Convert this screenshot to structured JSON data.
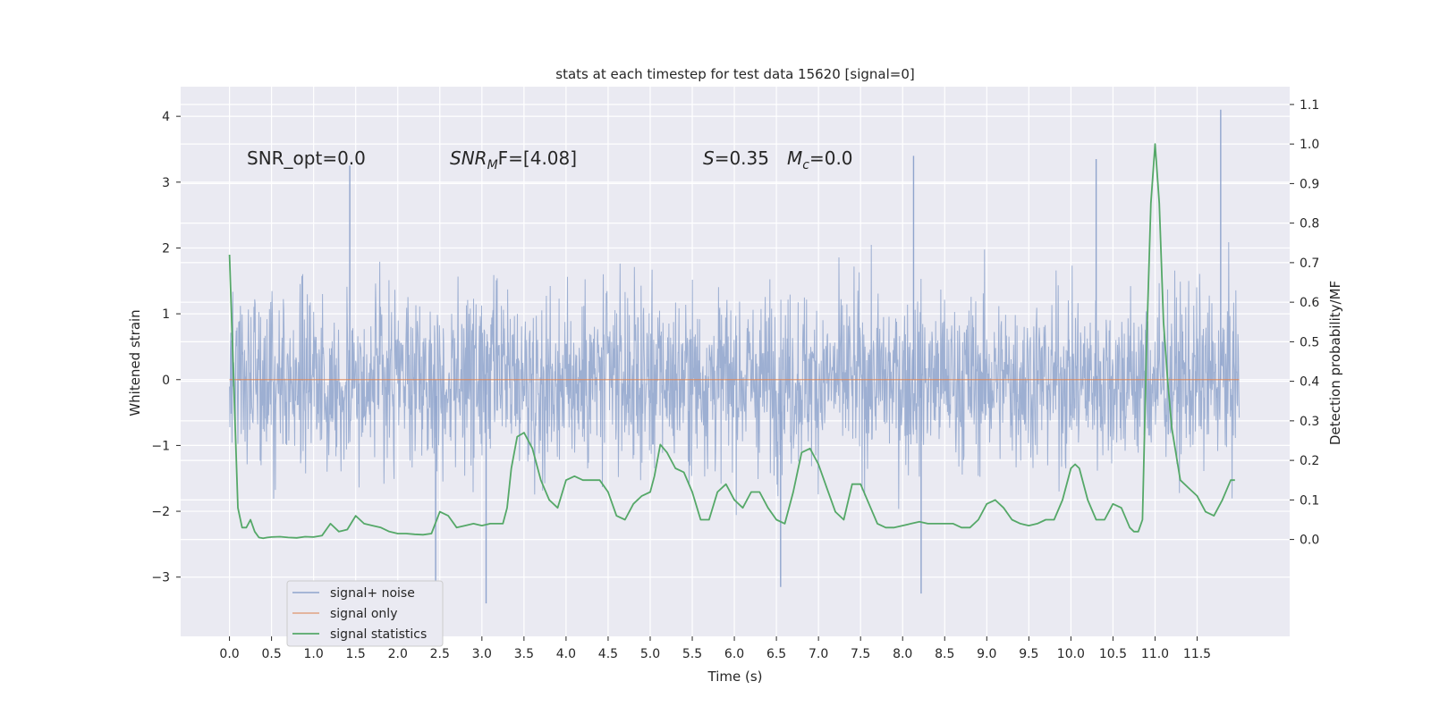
{
  "chart_data": {
    "type": "line",
    "title": "stats at each timestep for test data 15620 [signal=0]",
    "xlabel": "Time (s)",
    "ylabel": "Whitened strain",
    "y2label": "Detection probability/MF",
    "xlim": [
      -0.58,
      12.6
    ],
    "ylim": [
      -3.9,
      4.45
    ],
    "y2lim": [
      -0.245,
      1.145
    ],
    "x_ticks": [
      0.0,
      0.5,
      1.0,
      1.5,
      2.0,
      2.5,
      3.0,
      3.5,
      4.0,
      4.5,
      5.0,
      5.5,
      6.0,
      6.5,
      7.0,
      7.5,
      8.0,
      8.5,
      9.0,
      9.5,
      10.0,
      10.5,
      11.0,
      11.5
    ],
    "x_tick_labels": [
      "0.0",
      "0.5",
      "1.0",
      "1.5",
      "2.0",
      "2.5",
      "3.0",
      "3.5",
      "4.0",
      "4.5",
      "5.0",
      "5.5",
      "6.0",
      "6.5",
      "7.0",
      "7.5",
      "8.0",
      "8.5",
      "9.0",
      "9.5",
      "10.0",
      "10.5",
      "11.0",
      "11.5"
    ],
    "y_ticks": [
      -3,
      -2,
      -1,
      0,
      1,
      2,
      3,
      4
    ],
    "y_tick_labels": [
      "−3",
      "−2",
      "−1",
      "0",
      "1",
      "2",
      "3",
      "4"
    ],
    "y2_ticks": [
      0.0,
      0.1,
      0.2,
      0.3,
      0.4,
      0.5,
      0.6,
      0.7,
      0.8,
      0.9,
      1.0,
      1.1
    ],
    "y2_tick_labels": [
      "0.0",
      "0.1",
      "0.2",
      "0.3",
      "0.4",
      "0.5",
      "0.6",
      "0.7",
      "0.8",
      "0.9",
      "1.0",
      "1.1"
    ],
    "grid": true,
    "legend_position": "lower-left",
    "annotations": {
      "snr_opt": "SNR_opt=0.0",
      "snr_mf_name": "SNR",
      "snr_mf_sub": "M",
      "snr_mf_rest": "F=[4.08]",
      "s_name": "S",
      "s_value": "=0.35",
      "mc_name": "M",
      "mc_sub": "c",
      "mc_value": "=0.0"
    },
    "series": [
      {
        "name": "signal+ noise",
        "color": "#8fa4cd",
        "description_values": "whitened noise, 0.0 to 12.0 s, range about -3.4 to 4.1",
        "x_range": [
          0.0,
          12.0
        ],
        "notable_peaks": [
          {
            "x": 1.43,
            "y": 3.25
          },
          {
            "x": 8.13,
            "y": 3.4
          },
          {
            "x": 10.3,
            "y": 3.35
          },
          {
            "x": 11.78,
            "y": 4.1
          },
          {
            "x": 3.05,
            "y": -3.4
          },
          {
            "x": 2.45,
            "y": -3.55
          },
          {
            "x": 6.55,
            "y": -3.15
          },
          {
            "x": 8.22,
            "y": -3.25
          }
        ]
      },
      {
        "name": "signal only",
        "color": "#dd8452",
        "x": [
          0.0,
          12.0
        ],
        "y": [
          0.0,
          0.0
        ]
      },
      {
        "name": "signal statistics",
        "color": "#55a868",
        "axis": "right",
        "x": [
          0.0,
          0.05,
          0.1,
          0.15,
          0.2,
          0.25,
          0.3,
          0.35,
          0.4,
          0.45,
          0.5,
          0.6,
          0.7,
          0.8,
          0.9,
          1.0,
          1.1,
          1.2,
          1.3,
          1.4,
          1.5,
          1.6,
          1.7,
          1.8,
          1.9,
          2.0,
          2.1,
          2.2,
          2.3,
          2.4,
          2.5,
          2.6,
          2.7,
          2.8,
          2.9,
          3.0,
          3.1,
          3.2,
          3.25,
          3.3,
          3.35,
          3.42,
          3.5,
          3.6,
          3.7,
          3.8,
          3.9,
          4.0,
          4.1,
          4.2,
          4.3,
          4.4,
          4.5,
          4.6,
          4.7,
          4.8,
          4.9,
          5.0,
          5.05,
          5.12,
          5.2,
          5.3,
          5.4,
          5.5,
          5.6,
          5.7,
          5.8,
          5.9,
          6.0,
          6.1,
          6.2,
          6.3,
          6.4,
          6.5,
          6.6,
          6.7,
          6.8,
          6.9,
          6.95,
          7.0,
          7.1,
          7.2,
          7.3,
          7.4,
          7.5,
          7.6,
          7.7,
          7.8,
          7.9,
          8.0,
          8.1,
          8.2,
          8.3,
          8.4,
          8.5,
          8.6,
          8.7,
          8.8,
          8.9,
          9.0,
          9.1,
          9.2,
          9.3,
          9.4,
          9.5,
          9.6,
          9.7,
          9.8,
          9.9,
          10.0,
          10.05,
          10.1,
          10.2,
          10.3,
          10.4,
          10.5,
          10.6,
          10.7,
          10.75,
          10.8,
          10.85,
          10.9,
          10.95,
          11.0,
          11.05,
          11.1,
          11.15,
          11.2,
          11.3,
          11.4,
          11.5,
          11.6,
          11.7,
          11.8,
          11.9,
          11.95
        ],
        "y": [
          0.72,
          0.4,
          0.08,
          0.03,
          0.03,
          0.05,
          0.02,
          0.005,
          0.003,
          0.005,
          0.006,
          0.007,
          0.005,
          0.004,
          0.007,
          0.006,
          0.01,
          0.04,
          0.02,
          0.025,
          0.06,
          0.04,
          0.035,
          0.03,
          0.02,
          0.015,
          0.015,
          0.013,
          0.012,
          0.015,
          0.07,
          0.06,
          0.03,
          0.035,
          0.04,
          0.035,
          0.04,
          0.04,
          0.04,
          0.08,
          0.18,
          0.26,
          0.27,
          0.23,
          0.15,
          0.1,
          0.08,
          0.15,
          0.16,
          0.15,
          0.15,
          0.15,
          0.12,
          0.06,
          0.05,
          0.09,
          0.11,
          0.12,
          0.16,
          0.24,
          0.22,
          0.18,
          0.17,
          0.12,
          0.05,
          0.05,
          0.12,
          0.14,
          0.1,
          0.08,
          0.12,
          0.12,
          0.08,
          0.05,
          0.04,
          0.12,
          0.22,
          0.23,
          0.21,
          0.19,
          0.13,
          0.07,
          0.05,
          0.14,
          0.14,
          0.09,
          0.04,
          0.03,
          0.03,
          0.035,
          0.04,
          0.045,
          0.04,
          0.04,
          0.04,
          0.04,
          0.03,
          0.03,
          0.05,
          0.09,
          0.1,
          0.08,
          0.05,
          0.04,
          0.035,
          0.04,
          0.05,
          0.05,
          0.1,
          0.18,
          0.19,
          0.18,
          0.1,
          0.05,
          0.05,
          0.09,
          0.08,
          0.03,
          0.02,
          0.02,
          0.05,
          0.5,
          0.85,
          1.0,
          0.85,
          0.55,
          0.4,
          0.28,
          0.15,
          0.13,
          0.11,
          0.07,
          0.06,
          0.1,
          0.15,
          0.15
        ]
      }
    ]
  }
}
